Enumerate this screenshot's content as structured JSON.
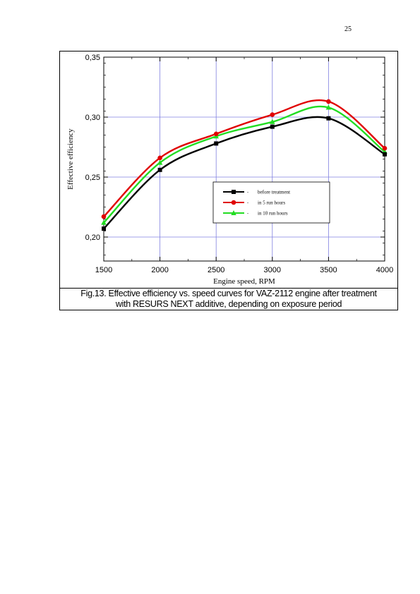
{
  "page": {
    "number": "25"
  },
  "figure": {
    "caption_line1": "Fig.13. Effective efficiency vs. speed curves for VAZ-2112 engine after treatment",
    "caption_line2": "with RESURS NEXT additive, depending on exposure period"
  },
  "chart_data": {
    "type": "line",
    "title": "",
    "xlabel": "Engine speed, RPM",
    "ylabel": "Effective efficiency",
    "x": [
      1500,
      2000,
      2500,
      3000,
      3500,
      4000
    ],
    "xlim": [
      1500,
      4000
    ],
    "ylim": [
      0.18,
      0.35
    ],
    "x_ticks": [
      "1500",
      "2000",
      "2500",
      "3000",
      "3500",
      "4000"
    ],
    "y_ticks": [
      {
        "value": 0.2,
        "label": "0,20"
      },
      {
        "value": 0.25,
        "label": "0,25"
      },
      {
        "value": 0.3,
        "label": "0,30"
      },
      {
        "value": 0.35,
        "label": "0,35"
      }
    ],
    "grid": true,
    "legend_position": "center-right",
    "series": [
      {
        "name": "before treatment",
        "color": "#000000",
        "marker": "square",
        "values": [
          0.207,
          0.256,
          0.278,
          0.292,
          0.299,
          0.269
        ]
      },
      {
        "name": "in 5 run hours",
        "color": "#e00000",
        "marker": "circle",
        "values": [
          0.217,
          0.266,
          0.286,
          0.302,
          0.313,
          0.274
        ]
      },
      {
        "name": "in 10 run hours",
        "color": "#22dd22",
        "marker": "triangle",
        "values": [
          0.212,
          0.262,
          0.284,
          0.296,
          0.308,
          0.271
        ]
      }
    ]
  }
}
